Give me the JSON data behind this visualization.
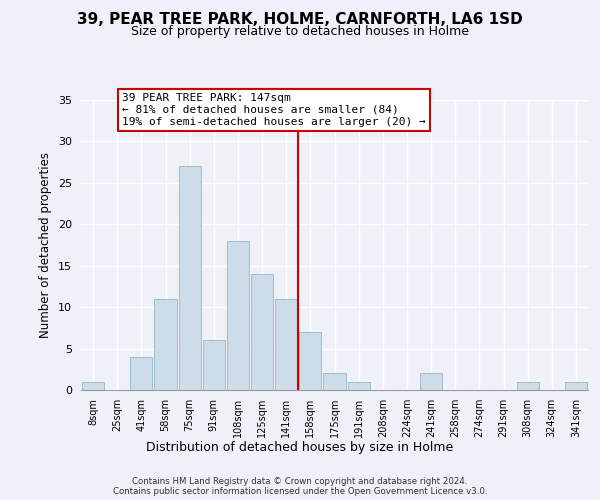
{
  "title": "39, PEAR TREE PARK, HOLME, CARNFORTH, LA6 1SD",
  "subtitle": "Size of property relative to detached houses in Holme",
  "xlabel": "Distribution of detached houses by size in Holme",
  "ylabel": "Number of detached properties",
  "bar_labels": [
    "8sqm",
    "25sqm",
    "41sqm",
    "58sqm",
    "75sqm",
    "91sqm",
    "108sqm",
    "125sqm",
    "141sqm",
    "158sqm",
    "175sqm",
    "191sqm",
    "208sqm",
    "224sqm",
    "241sqm",
    "258sqm",
    "274sqm",
    "291sqm",
    "308sqm",
    "324sqm",
    "341sqm"
  ],
  "bar_values": [
    1,
    0,
    4,
    11,
    27,
    6,
    18,
    14,
    11,
    7,
    2,
    1,
    0,
    0,
    2,
    0,
    0,
    0,
    1,
    0,
    1
  ],
  "bar_color": "#ccdce8",
  "bar_edge_color": "#a0bcd0",
  "vline_color": "#cc0000",
  "annotation_line1": "39 PEAR TREE PARK: 147sqm",
  "annotation_line2": "← 81% of detached houses are smaller (84)",
  "annotation_line3": "19% of semi-detached houses are larger (20) →",
  "annotation_box_color": "#ffffff",
  "annotation_box_edge": "#cc0000",
  "ylim": [
    0,
    35
  ],
  "yticks": [
    0,
    5,
    10,
    15,
    20,
    25,
    30,
    35
  ],
  "bg_color": "#eef2f8",
  "grid_color": "#ffffff",
  "footer_line1": "Contains HM Land Registry data © Crown copyright and database right 2024.",
  "footer_line2": "Contains public sector information licensed under the Open Government Licence v3.0."
}
